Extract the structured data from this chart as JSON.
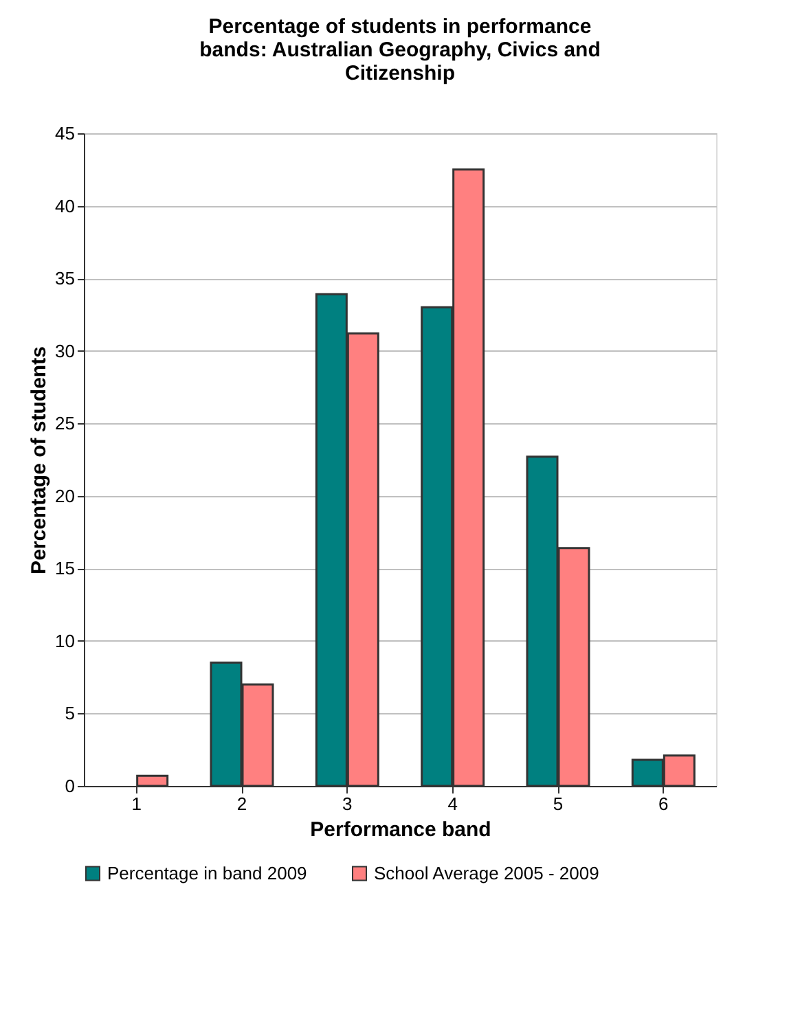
{
  "chart_data": {
    "type": "bar",
    "title": [
      "Percentage of students in performance",
      "bands: Australian Geography, Civics and",
      "Citizenship"
    ],
    "xlabel": "Performance band",
    "ylabel": "Percentage of students",
    "categories": [
      "1",
      "2",
      "3",
      "4",
      "5",
      "6"
    ],
    "series": [
      {
        "name": "Percentage in band 2009",
        "color": "#008080",
        "values": [
          null,
          8.5,
          33.9,
          33.0,
          22.7,
          1.8
        ]
      },
      {
        "name": "School Average 2005 - 2009",
        "color": "#ff8080",
        "values": [
          0.7,
          7.0,
          31.2,
          42.5,
          16.4,
          2.1
        ]
      }
    ],
    "ylim": [
      0,
      45
    ],
    "yticks": [
      0,
      5,
      10,
      15,
      20,
      25,
      30,
      35,
      40,
      45
    ],
    "grid": "y",
    "legend": "bottom"
  }
}
